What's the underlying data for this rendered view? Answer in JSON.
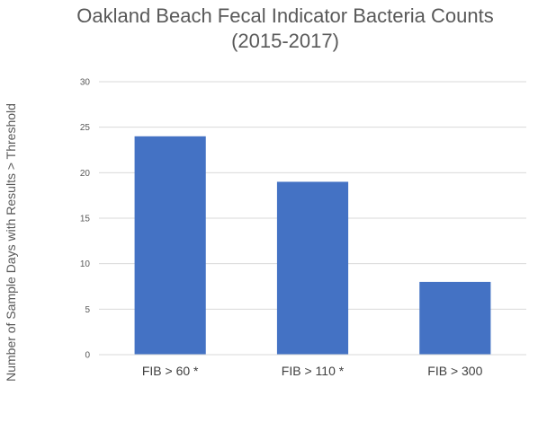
{
  "chart_data": {
    "type": "bar",
    "title_lines": [
      "Oakland Beach Fecal Indicator Bacteria Counts",
      "(2015-2017)"
    ],
    "xlabel": "",
    "ylabel": "Number of Sample Days with Results > Threshold",
    "categories": [
      "FIB > 60 *",
      "FIB > 110 *",
      "FIB > 300"
    ],
    "values": [
      24,
      19,
      8
    ],
    "ylim": [
      0,
      30
    ],
    "yticks": [
      "0",
      "5",
      "10",
      "15",
      "20",
      "25",
      "30"
    ],
    "grid": true,
    "legend": "none",
    "bar_color": "#4472c4"
  }
}
